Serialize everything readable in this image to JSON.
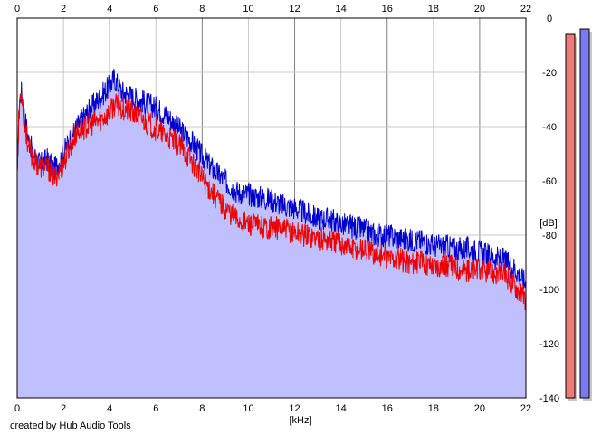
{
  "credit": "created by Hub Audio Tools",
  "colors": {
    "left_channel": "#ee0000",
    "right_channel": "#0000cc",
    "fill": "#c0c0ff",
    "grid": "#c8c8c8",
    "major_grid": "#808080",
    "left_meter": "#f07a7a",
    "right_meter": "#7a7af0"
  },
  "chart_data": {
    "type": "line",
    "title": "",
    "xlabel": "[kHz]",
    "ylabel": "[dB]",
    "xlim": [
      0,
      22
    ],
    "ylim": [
      -140,
      0
    ],
    "x_ticks": [
      "0",
      "2",
      "4",
      "6",
      "8",
      "10",
      "12",
      "14",
      "16",
      "18",
      "20",
      "22"
    ],
    "y_ticks": [
      "0",
      "-20",
      "-40",
      "-60",
      "-80",
      "-100",
      "-120",
      "-140"
    ],
    "grid": true,
    "x": [
      0,
      0.1,
      0.2,
      0.3,
      0.5,
      0.7,
      1.0,
      1.3,
      1.6,
      2.0,
      2.3,
      2.6,
      3.0,
      3.5,
      4.0,
      4.2,
      4.5,
      5.0,
      5.5,
      6.0,
      6.5,
      7.0,
      7.5,
      8.0,
      8.5,
      9.0,
      9.5,
      10.0,
      10.5,
      11.0,
      11.5,
      12.0,
      12.5,
      13.0,
      13.5,
      14.0,
      14.5,
      15.0,
      15.5,
      16.0,
      16.5,
      17.0,
      17.5,
      18.0,
      18.5,
      19.0,
      19.5,
      20.0,
      20.5,
      21.0,
      21.5,
      22.0
    ],
    "series": [
      {
        "channel": "right",
        "values": [
          -55,
          -30,
          -27,
          -35,
          -45,
          -50,
          -54,
          -52,
          -56,
          -50,
          -44,
          -40,
          -35,
          -30,
          -25,
          -22,
          -27,
          -29,
          -31,
          -33,
          -36,
          -41,
          -45,
          -51,
          -56,
          -60,
          -64,
          -65,
          -66,
          -67,
          -69,
          -70,
          -72,
          -74,
          -74,
          -76,
          -77,
          -78,
          -80,
          -80,
          -81,
          -82,
          -82,
          -84,
          -84,
          -85,
          -85,
          -86,
          -88,
          -89,
          -92,
          -98
        ]
      },
      {
        "channel": "left",
        "values": [
          -55,
          -30,
          -27,
          -38,
          -48,
          -52,
          -55,
          -55,
          -59,
          -54,
          -47,
          -42,
          -40,
          -38,
          -35,
          -32,
          -33,
          -35,
          -38,
          -41,
          -44,
          -47,
          -52,
          -59,
          -65,
          -70,
          -74,
          -76,
          -77,
          -77,
          -78,
          -79,
          -80,
          -81,
          -82,
          -83,
          -85,
          -85,
          -87,
          -88,
          -89,
          -90,
          -90,
          -91,
          -91,
          -92,
          -93,
          -93,
          -94,
          -94,
          -98,
          -104
        ]
      }
    ],
    "level_meters": [
      {
        "channel": "left",
        "value_db": -6
      },
      {
        "channel": "right",
        "value_db": -4
      }
    ]
  }
}
